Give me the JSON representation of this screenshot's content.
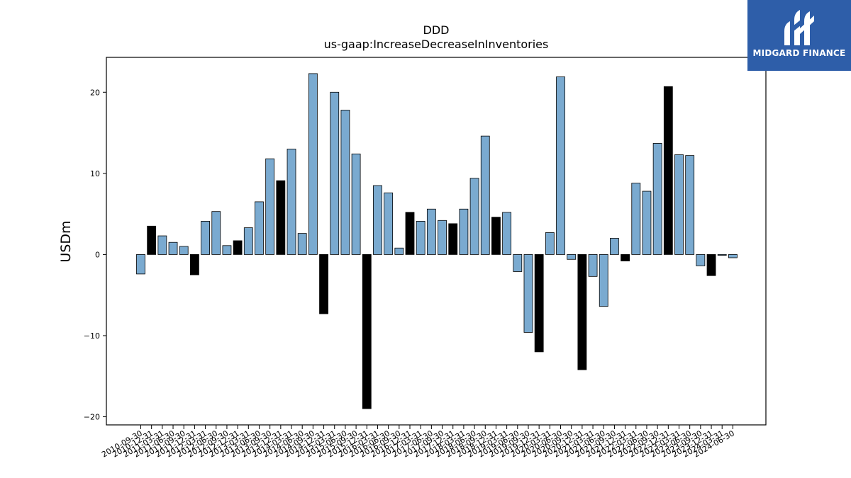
{
  "chart_data": {
    "type": "bar",
    "title": "DDD",
    "subtitle": "us-gaap:IncreaseDecreaseInInventories",
    "ylabel": "USDm",
    "xlabel": "",
    "ylim": [
      -21,
      24.3
    ],
    "yticks": [
      -20,
      -10,
      0,
      10,
      20
    ],
    "grid": false,
    "colors": {
      "quarter": "#7aaad0",
      "fiscal_year_end": "#000000",
      "edge": "#000000"
    },
    "highlight_rule": "annual (Dec-31) observations drawn in black",
    "categories": [
      "2010-09-30",
      "2010-12-31",
      "2011-03-31",
      "2011-06-30",
      "2011-09-30",
      "2011-12-31",
      "2012-03-31",
      "2012-06-30",
      "2012-09-30",
      "2012-12-31",
      "2013-03-31",
      "2013-06-30",
      "2013-09-30",
      "2013-12-31",
      "2014-03-31",
      "2014-06-30",
      "2014-09-30",
      "2014-12-31",
      "2015-03-31",
      "2015-06-30",
      "2015-09-30",
      "2015-12-31",
      "2016-03-31",
      "2016-06-30",
      "2016-09-30",
      "2016-12-31",
      "2017-03-31",
      "2017-06-30",
      "2017-09-30",
      "2017-12-31",
      "2018-03-31",
      "2018-06-30",
      "2018-09-30",
      "2018-12-31",
      "2019-03-31",
      "2019-06-30",
      "2019-09-30",
      "2019-12-31",
      "2020-03-31",
      "2020-06-30",
      "2020-09-30",
      "2020-12-31",
      "2021-03-31",
      "2021-06-30",
      "2021-09-30",
      "2021-12-31",
      "2022-03-31",
      "2022-06-30",
      "2022-09-30",
      "2022-12-31",
      "2023-03-31",
      "2023-06-30",
      "2023-09-30",
      "2023-12-31",
      "2024-03-31",
      "2024-06-30"
    ],
    "tick_labels": [
      "2010-09-30",
      "2010-12-31",
      "2011-03-31",
      "2011-06-30",
      "2011-09-30",
      "2011-12-31",
      "2012-03-31",
      "2012-06-30",
      "2012-09-30",
      "2012-12-31",
      "2013-03-31",
      "2013-06-30",
      "2013-09-30",
      "2013-12-31",
      "2014-03-31",
      "2014-06-30",
      "2014-09-30",
      "2014-12-31",
      "2015-03-31",
      "2015-06-30",
      "2015-09-30",
      "2015-12-31",
      "2016-03-31",
      "2016-06-30",
      "2016-09-30",
      "2016-12-31",
      "2017-03-31",
      "2017-06-30",
      "2017-09-30",
      "2017-12-31",
      "2018-03-31",
      "2018-06-30",
      "2018-09-30",
      "2018-12-31",
      "2019-03-31",
      "2019-06-30",
      "2019-09-30",
      "2019-12-31",
      "2020-03-31",
      "2020-06-30",
      "2020-09-30",
      "2020-12-31",
      "2021-03-31",
      "2021-06-30",
      "2021-09-30",
      "2021-12-31",
      "2022-03-31",
      "2022-06-30",
      "2022-09-30",
      "2022-12-31",
      "2023-03-31",
      "2023-06-30",
      "2023-09-30",
      "2023-12-31",
      "2024-03-31",
      "2024-06-30"
    ],
    "values": [
      -2.4,
      3.5,
      2.3,
      1.5,
      1.0,
      -2.5,
      4.1,
      5.3,
      1.1,
      1.7,
      3.3,
      6.5,
      11.8,
      9.1,
      13.0,
      2.6,
      22.3,
      -7.3,
      20.0,
      17.8,
      12.4,
      -19.0,
      8.5,
      7.6,
      0.8,
      5.2,
      4.1,
      5.6,
      4.2,
      3.8,
      5.6,
      9.4,
      14.6,
      4.6,
      5.2,
      -2.1,
      -9.6,
      -12.0,
      2.7,
      21.9,
      -0.6,
      -14.2,
      -2.7,
      -6.4,
      2.0,
      -0.8,
      8.8,
      7.8,
      13.7,
      20.7,
      12.3,
      12.2,
      -1.4,
      -2.6,
      -0.1,
      -0.4
    ]
  },
  "logo": {
    "text": "MIDGARD FINANCE",
    "icon": "midgard-m-logo-icon"
  }
}
